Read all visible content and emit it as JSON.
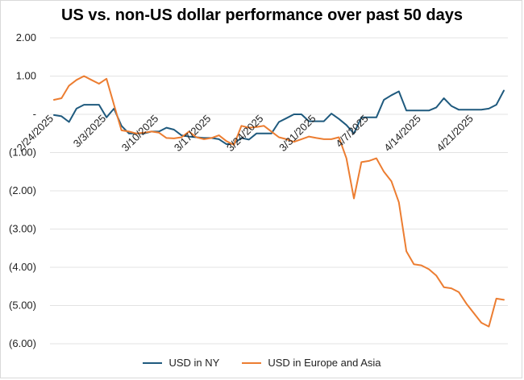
{
  "chart_data": {
    "type": "line",
    "title": "US vs. non-US dollar performance over past 50 days",
    "xlabel": "",
    "ylabel": "",
    "ylim": [
      -6.0,
      2.0
    ],
    "yticks": [
      2.0,
      1.0,
      0.0,
      -1.0,
      -2.0,
      -3.0,
      -4.0,
      -5.0,
      -6.0
    ],
    "ytick_labels": [
      "2.00",
      "1.00",
      "-",
      "(1.00)",
      "(2.00)",
      "(3.00)",
      "(4.00)",
      "(5.00)",
      "(6.00)"
    ],
    "x_start": "2025-02-24",
    "x_end": "2025-04-25",
    "xticks": [
      "2025-02-24",
      "2025-03-03",
      "2025-03-10",
      "2025-03-17",
      "2025-03-24",
      "2025-03-31",
      "2025-04-07",
      "2025-04-14",
      "2025-04-21"
    ],
    "xtick_labels": [
      "2/24/2025",
      "3/3/2025",
      "3/10/2025",
      "3/17/2025",
      "3/24/2025",
      "3/31/2025",
      "4/7/2025",
      "4/14/2025",
      "4/21/2025"
    ],
    "grid": "horizontal",
    "legend_position": "bottom",
    "series": [
      {
        "name": "USD in NY",
        "color": "#1f5a7e",
        "points": [
          [
            "2025-02-24",
            -0.02
          ],
          [
            "2025-02-25",
            -0.05
          ],
          [
            "2025-02-26",
            -0.2
          ],
          [
            "2025-02-27",
            0.15
          ],
          [
            "2025-02-28",
            0.25
          ],
          [
            "2025-03-01",
            0.25
          ],
          [
            "2025-03-02",
            0.25
          ],
          [
            "2025-03-03",
            -0.08
          ],
          [
            "2025-03-04",
            0.15
          ],
          [
            "2025-03-05",
            -0.3
          ],
          [
            "2025-03-06",
            -0.5
          ],
          [
            "2025-03-07",
            -0.5
          ],
          [
            "2025-03-08",
            -0.5
          ],
          [
            "2025-03-09",
            -0.45
          ],
          [
            "2025-03-10",
            -0.45
          ],
          [
            "2025-03-11",
            -0.35
          ],
          [
            "2025-03-12",
            -0.4
          ],
          [
            "2025-03-13",
            -0.55
          ],
          [
            "2025-03-14",
            -0.58
          ],
          [
            "2025-03-15",
            -0.6
          ],
          [
            "2025-03-16",
            -0.62
          ],
          [
            "2025-03-17",
            -0.62
          ],
          [
            "2025-03-18",
            -0.65
          ],
          [
            "2025-03-19",
            -0.78
          ],
          [
            "2025-03-20",
            -0.76
          ],
          [
            "2025-03-21",
            -0.62
          ],
          [
            "2025-03-22",
            -0.66
          ],
          [
            "2025-03-23",
            -0.5
          ],
          [
            "2025-03-24",
            -0.5
          ],
          [
            "2025-03-25",
            -0.5
          ],
          [
            "2025-03-26",
            -0.2
          ],
          [
            "2025-03-27",
            -0.1
          ],
          [
            "2025-03-28",
            0.0
          ],
          [
            "2025-03-29",
            0.0
          ],
          [
            "2025-03-30",
            -0.18
          ],
          [
            "2025-03-31",
            -0.18
          ],
          [
            "2025-04-01",
            -0.18
          ],
          [
            "2025-04-02",
            0.02
          ],
          [
            "2025-04-03",
            -0.12
          ],
          [
            "2025-04-04",
            -0.28
          ],
          [
            "2025-04-05",
            -0.5
          ],
          [
            "2025-04-06",
            -0.08
          ],
          [
            "2025-04-07",
            -0.08
          ],
          [
            "2025-04-08",
            -0.08
          ],
          [
            "2025-04-09",
            0.38
          ],
          [
            "2025-04-10",
            0.5
          ],
          [
            "2025-04-11",
            0.6
          ],
          [
            "2025-04-12",
            0.1
          ],
          [
            "2025-04-13",
            0.1
          ],
          [
            "2025-04-14",
            0.1
          ],
          [
            "2025-04-15",
            0.1
          ],
          [
            "2025-04-16",
            0.18
          ],
          [
            "2025-04-17",
            0.42
          ],
          [
            "2025-04-18",
            0.22
          ],
          [
            "2025-04-19",
            0.12
          ],
          [
            "2025-04-20",
            0.12
          ],
          [
            "2025-04-21",
            0.12
          ],
          [
            "2025-04-22",
            0.12
          ],
          [
            "2025-04-23",
            0.15
          ],
          [
            "2025-04-24",
            0.25
          ],
          [
            "2025-04-25",
            0.62
          ]
        ]
      },
      {
        "name": "USD in Europe and Asia",
        "color": "#ec7d31",
        "points": [
          [
            "2025-02-24",
            0.38
          ],
          [
            "2025-02-25",
            0.42
          ],
          [
            "2025-02-26",
            0.75
          ],
          [
            "2025-02-27",
            0.9
          ],
          [
            "2025-02-28",
            1.0
          ],
          [
            "2025-03-01",
            0.9
          ],
          [
            "2025-03-02",
            0.8
          ],
          [
            "2025-03-03",
            0.93
          ],
          [
            "2025-03-04",
            0.25
          ],
          [
            "2025-03-05",
            -0.42
          ],
          [
            "2025-03-06",
            -0.45
          ],
          [
            "2025-03-07",
            -0.5
          ],
          [
            "2025-03-08",
            -0.48
          ],
          [
            "2025-03-09",
            -0.45
          ],
          [
            "2025-03-10",
            -0.48
          ],
          [
            "2025-03-11",
            -0.62
          ],
          [
            "2025-03-12",
            -0.63
          ],
          [
            "2025-03-13",
            -0.6
          ],
          [
            "2025-03-14",
            -0.45
          ],
          [
            "2025-03-15",
            -0.6
          ],
          [
            "2025-03-16",
            -0.65
          ],
          [
            "2025-03-17",
            -0.62
          ],
          [
            "2025-03-18",
            -0.55
          ],
          [
            "2025-03-19",
            -0.7
          ],
          [
            "2025-03-20",
            -0.8
          ],
          [
            "2025-03-21",
            -0.3
          ],
          [
            "2025-03-22",
            -0.35
          ],
          [
            "2025-03-23",
            -0.33
          ],
          [
            "2025-03-24",
            -0.3
          ],
          [
            "2025-03-25",
            -0.45
          ],
          [
            "2025-03-26",
            -0.6
          ],
          [
            "2025-03-27",
            -0.65
          ],
          [
            "2025-03-28",
            -0.72
          ],
          [
            "2025-03-29",
            -0.65
          ],
          [
            "2025-03-30",
            -0.58
          ],
          [
            "2025-03-31",
            -0.62
          ],
          [
            "2025-04-01",
            -0.65
          ],
          [
            "2025-04-02",
            -0.65
          ],
          [
            "2025-04-03",
            -0.6
          ],
          [
            "2025-04-04",
            -1.15
          ],
          [
            "2025-04-05",
            -2.2
          ],
          [
            "2025-04-06",
            -1.25
          ],
          [
            "2025-04-07",
            -1.22
          ],
          [
            "2025-04-08",
            -1.15
          ],
          [
            "2025-04-09",
            -1.5
          ],
          [
            "2025-04-10",
            -1.75
          ],
          [
            "2025-04-11",
            -2.3
          ],
          [
            "2025-04-12",
            -3.58
          ],
          [
            "2025-04-13",
            -3.92
          ],
          [
            "2025-04-14",
            -3.95
          ],
          [
            "2025-04-15",
            -4.05
          ],
          [
            "2025-04-16",
            -4.22
          ],
          [
            "2025-04-17",
            -4.52
          ],
          [
            "2025-04-18",
            -4.55
          ],
          [
            "2025-04-19",
            -4.65
          ],
          [
            "2025-04-20",
            -4.95
          ],
          [
            "2025-04-21",
            -5.2
          ],
          [
            "2025-04-22",
            -5.45
          ],
          [
            "2025-04-23",
            -5.55
          ],
          [
            "2025-04-24",
            -4.82
          ],
          [
            "2025-04-25",
            -4.85
          ]
        ]
      }
    ]
  }
}
